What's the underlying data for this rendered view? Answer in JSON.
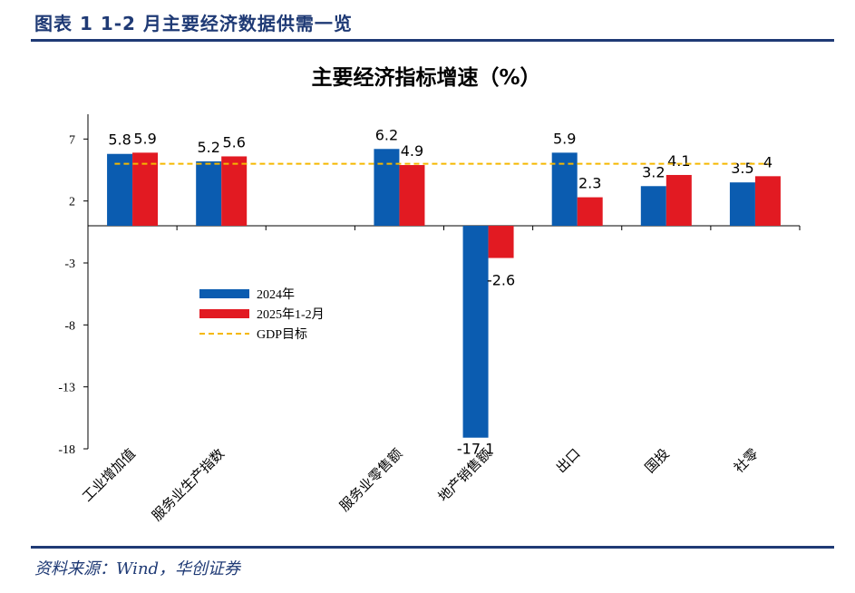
{
  "header": {
    "title": "图表 1    1-2 月主要经济数据供需一览"
  },
  "footer": {
    "source": "资料来源：Wind，华创证券"
  },
  "colors": {
    "brand": "#1f3a75",
    "series_2024": "#0b5cb0",
    "series_2025": "#e21a22",
    "gdp_target": "#f5b800"
  },
  "chart_data": {
    "type": "bar",
    "title": "主要经济指标增速（%）",
    "categories": [
      "工业增加值",
      "服务业生产指数",
      "",
      "服务业零售额",
      "地产销售额",
      "出口",
      "国投",
      "社零"
    ],
    "series": [
      {
        "name": "2024年",
        "values": [
          5.8,
          5.2,
          null,
          6.2,
          -17.1,
          5.9,
          3.2,
          3.5
        ],
        "labels": [
          "5.8",
          "5.2",
          "",
          "6.2",
          "-17.1",
          "5.9",
          "3.2",
          "3.5"
        ]
      },
      {
        "name": "2025年1-2月",
        "values": [
          5.9,
          5.6,
          null,
          4.9,
          -2.6,
          2.3,
          4.1,
          4.0
        ],
        "labels": [
          "5.9",
          "5.6",
          "",
          "4.9",
          "-2.6",
          "2.3",
          "4.1",
          "4"
        ]
      }
    ],
    "reference_line": {
      "name": "GDP目标",
      "value": 5.0,
      "style": "dashed"
    },
    "y_ticks": [
      7,
      2,
      -3,
      -8,
      -13,
      -18
    ],
    "ylim": [
      -18,
      9
    ],
    "legend_position": "middle-left",
    "grid": false,
    "xlabel": "",
    "ylabel": ""
  }
}
